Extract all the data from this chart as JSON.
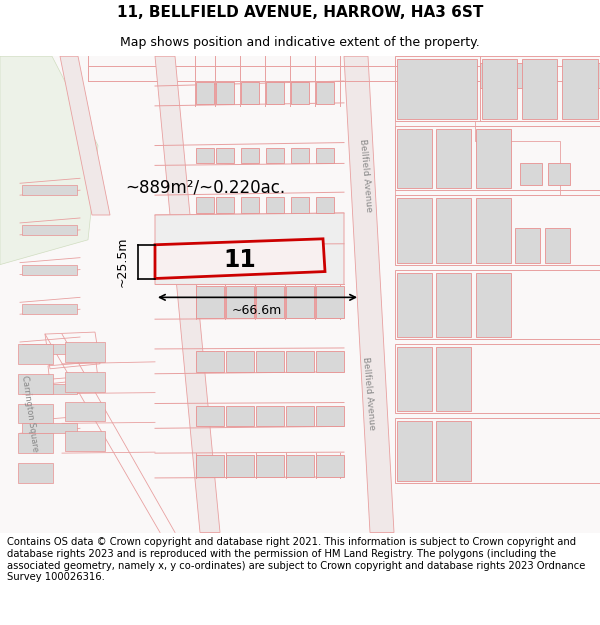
{
  "title_line1": "11, BELLFIELD AVENUE, HARROW, HA3 6ST",
  "title_line2": "Map shows position and indicative extent of the property.",
  "footer_text": "Contains OS data © Crown copyright and database right 2021. This information is subject to Crown copyright and database rights 2023 and is reproduced with the permission of HM Land Registry. The polygons (including the associated geometry, namely x, y co-ordinates) are subject to Crown copyright and database rights 2023 Ordnance Survey 100026316.",
  "bg_color": "#ffffff",
  "map_bg": "#faf8f8",
  "plot_line_color": "#e8a0a0",
  "building_fill": "#d8d8d8",
  "building_edge": "#e89090",
  "highlight_color": "#cc0000",
  "green_color": "#edf2e8",
  "green_edge": "#d0ddc0",
  "road_label_color": "#888888",
  "area_label": "~889m²/~0.220ac.",
  "number_label": "11",
  "width_label": "~66.6m",
  "height_label": "~25.5m",
  "bellfield_label": "Bellfield Avenue",
  "carrington_label": "Carrington Square",
  "title_fontsize": 11,
  "subtitle_fontsize": 9,
  "footer_fontsize": 7.2
}
